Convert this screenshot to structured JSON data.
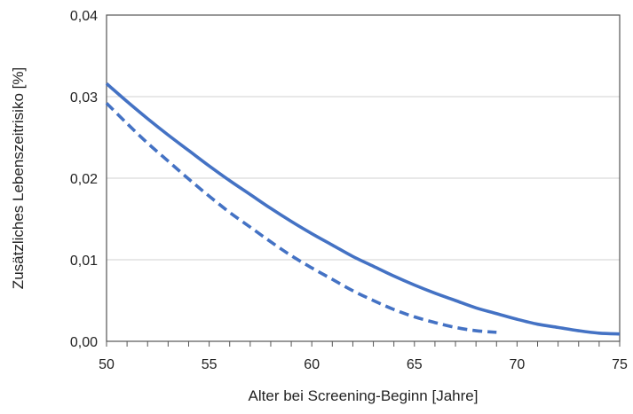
{
  "chart_data": {
    "type": "line",
    "xlabel": "Alter bei Screening-Beginn [Jahre]",
    "ylabel": "Zusätzliches Lebenszeitrisiko [%]",
    "xlim": [
      50,
      75
    ],
    "ylim": [
      0,
      0.04
    ],
    "x_ticks": [
      50,
      55,
      60,
      65,
      70,
      75
    ],
    "x_tick_labels": [
      "50",
      "55",
      "60",
      "65",
      "70",
      "75"
    ],
    "x_minor_step": 1,
    "y_ticks": [
      0,
      0.01,
      0.02,
      0.03,
      0.04
    ],
    "y_tick_labels": [
      "0,00",
      "0,01",
      "0,02",
      "0,03",
      "0,04"
    ],
    "grid": "horizontal",
    "legend": "none",
    "series": [
      {
        "style": "solid",
        "color": "#4472c4",
        "x": [
          50,
          51,
          52,
          53,
          54,
          55,
          56,
          57,
          58,
          59,
          60,
          61,
          62,
          63,
          64,
          65,
          66,
          67,
          68,
          69,
          70,
          71,
          72,
          73,
          74,
          75
        ],
        "y": [
          0.0316,
          0.0294,
          0.0273,
          0.0253,
          0.0234,
          0.0215,
          0.0197,
          0.018,
          0.0163,
          0.0147,
          0.0132,
          0.0118,
          0.0104,
          0.0092,
          0.008,
          0.0069,
          0.0059,
          0.005,
          0.0041,
          0.0034,
          0.0027,
          0.0021,
          0.0017,
          0.0013,
          0.001,
          0.0009
        ]
      },
      {
        "style": "dashed",
        "color": "#4472c4",
        "x": [
          50,
          51,
          52,
          53,
          54,
          55,
          56,
          57,
          58,
          59,
          60,
          61,
          62,
          63,
          64,
          65,
          66,
          67,
          68,
          69
        ],
        "y": [
          0.0292,
          0.0267,
          0.0243,
          0.0221,
          0.0199,
          0.0178,
          0.0158,
          0.014,
          0.0122,
          0.0105,
          0.009,
          0.0076,
          0.0062,
          0.005,
          0.0039,
          0.003,
          0.0023,
          0.0017,
          0.0013,
          0.0011
        ]
      }
    ]
  }
}
